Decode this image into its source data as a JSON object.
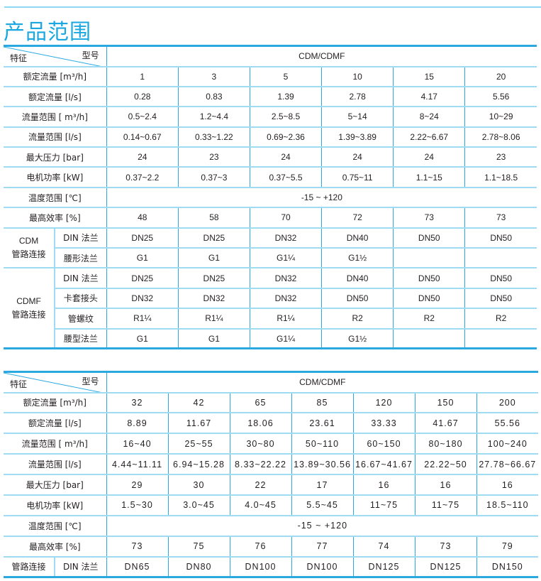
{
  "title": "产品范围",
  "colors": {
    "accent": "#1ba8e0",
    "border": "#2aa9e0",
    "row_divider": "#9fdcf4"
  },
  "table1": {
    "corner_model": "型号",
    "corner_feature": "特征",
    "series": "CDM/CDMF",
    "rows": [
      {
        "label": "额定流量  [m³/h]",
        "values": [
          "1",
          "3",
          "5",
          "10",
          "15",
          "20"
        ]
      },
      {
        "label": "额定流量  [l/s]",
        "values": [
          "0.28",
          "0.83",
          "1.39",
          "2.78",
          "4.17",
          "5.56"
        ]
      },
      {
        "label": "流量范围  [ m³/h]",
        "values": [
          "0.5~2.4",
          "1.2~4.4",
          "2.5~8.5",
          "5~14",
          "8~24",
          "10~29"
        ]
      },
      {
        "label": "流量范围  [l/s]",
        "values": [
          "0.14~0.67",
          "0.33~1.22",
          "0.69~2.36",
          "1.39~3.89",
          "2.22~6.67",
          "2.78~8.06"
        ]
      },
      {
        "label": "最大压力  [bar]",
        "values": [
          "24",
          "23",
          "24",
          "24",
          "24",
          "23"
        ]
      },
      {
        "label": "电机功率  [kW]",
        "values": [
          "0.37~2.2",
          "0.37~3",
          "0.37~5.5",
          "0.75~11",
          "1.1~15",
          "1.1~18.5"
        ]
      },
      {
        "label": "温度范围  [℃]",
        "span": "-15 ~ +120"
      },
      {
        "label": "最高效率  [%]",
        "values": [
          "48",
          "58",
          "70",
          "72",
          "73",
          "73"
        ]
      }
    ],
    "groups": [
      {
        "label_line1": "CDM",
        "label_line2": "管路连接",
        "rows": [
          {
            "label": "DIN 法兰",
            "values": [
              "DN25",
              "DN25",
              "DN32",
              "DN40",
              "DN50",
              "DN50"
            ]
          },
          {
            "label": "腰形法兰",
            "values": [
              "G1",
              "G1",
              "G1¼",
              "G1½",
              "",
              ""
            ]
          }
        ]
      },
      {
        "label_line1": "CDMF",
        "label_line2": "管路连接",
        "rows": [
          {
            "label": "DIN 法兰",
            "values": [
              "DN25",
              "DN25",
              "DN32",
              "DN40",
              "DN50",
              "DN50"
            ]
          },
          {
            "label": "卡套接头",
            "values": [
              "DN32",
              "DN32",
              "DN32",
              "DN50",
              "DN50",
              "DN50"
            ]
          },
          {
            "label": "管螺纹",
            "values": [
              "R1¼",
              "R1¼",
              "R1¼",
              "R2",
              "R2",
              "R2"
            ]
          },
          {
            "label": "腰型法兰",
            "values": [
              "G1",
              "G1",
              "G1¼",
              "G1½",
              "",
              ""
            ]
          }
        ]
      }
    ]
  },
  "table2": {
    "corner_model": "型号",
    "corner_feature": "特征",
    "series": "CDM/CDMF",
    "rows": [
      {
        "label": "额定流量  [m³/h]",
        "values": [
          "32",
          "42",
          "65",
          "85",
          "120",
          "150",
          "200"
        ]
      },
      {
        "label": "额定流量  [l/s]",
        "values": [
          "8.89",
          "11.67",
          "18.06",
          "23.61",
          "33.33",
          "41.67",
          "55.56"
        ]
      },
      {
        "label": "流量范围  [ m³/h]",
        "values": [
          "16~40",
          "25~55",
          "30~80",
          "50~110",
          "60~150",
          "80~180",
          "100~240"
        ]
      },
      {
        "label": "流量范围  [l/s]",
        "values": [
          "4.44~11.11",
          "6.94~15.28",
          "8.33~22.22",
          "13.89~30.56",
          "16.67~41.67",
          "22.22~50",
          "27.78~66.67"
        ]
      },
      {
        "label": "最大压力  [bar]",
        "values": [
          "29",
          "30",
          "22",
          "17",
          "16",
          "16",
          "16"
        ]
      },
      {
        "label": "电机功率  [kW]",
        "values": [
          "1.5~30",
          "3.0~45",
          "4.0~45",
          "5.5~45",
          "11~75",
          "11~75",
          "18.5~110"
        ]
      },
      {
        "label": "温度范围  [℃]",
        "span": "-15 ~ +120"
      },
      {
        "label": "最高效率  [%]",
        "values": [
          "73",
          "75",
          "76",
          "77",
          "74",
          "73",
          "79"
        ]
      }
    ],
    "groups": [
      {
        "label": "管路连接",
        "rows": [
          {
            "label": "DIN 法兰",
            "values": [
              "DN65",
              "DN80",
              "DN100",
              "DN100",
              "DN125",
              "DN125",
              "DN150"
            ]
          }
        ]
      }
    ]
  }
}
